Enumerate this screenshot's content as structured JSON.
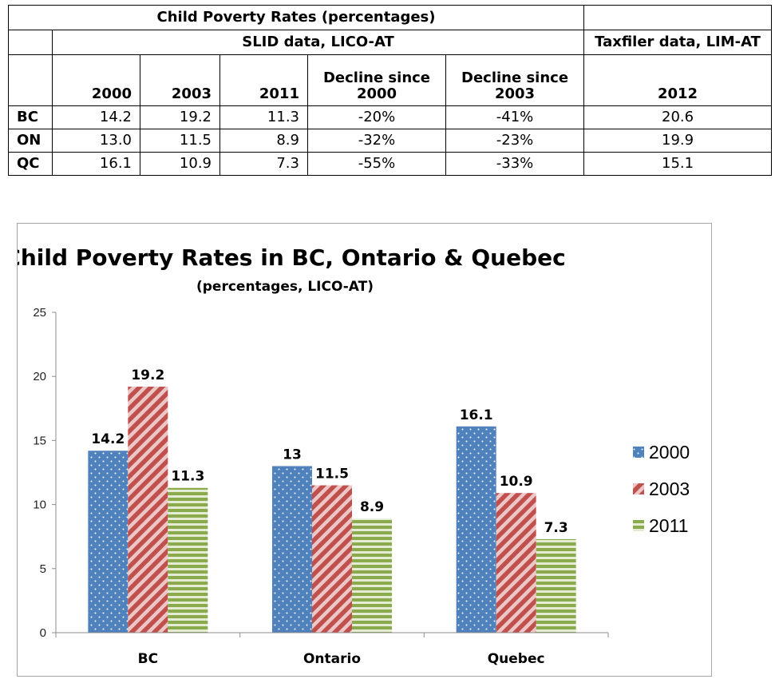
{
  "table": {
    "title": "Child Poverty Rates (percentages)",
    "slid_header": "SLID data, LICO-AT",
    "taxfiler_header": "Taxfiler data, LIM-AT",
    "columns": [
      "2000",
      "2003",
      "2011",
      "Decline since\n2000",
      "Decline since\n2003",
      "2012"
    ],
    "rows": [
      {
        "label": "BC",
        "cells": [
          "14.2",
          "19.2",
          "11.3",
          "-20%",
          "-41%",
          "20.6"
        ]
      },
      {
        "label": "ON",
        "cells": [
          "13.0",
          "11.5",
          "8.9",
          "-32%",
          "-23%",
          "19.9"
        ]
      },
      {
        "label": "QC",
        "cells": [
          "16.1",
          "10.9",
          "7.3",
          "-55%",
          "-33%",
          "15.1"
        ]
      }
    ]
  },
  "chart_data": {
    "type": "bar",
    "title": "Child Poverty Rates in BC, Ontario & Quebec",
    "subtitle": "(percentages, LICO-AT)",
    "categories": [
      "BC",
      "Ontario",
      "Quebec"
    ],
    "series": [
      {
        "name": "2000",
        "values": [
          14.2,
          13,
          16.1
        ],
        "color": "#4f81bd",
        "pattern": "dots"
      },
      {
        "name": "2003",
        "values": [
          19.2,
          11.5,
          10.9
        ],
        "color": "#c0504d",
        "pattern": "diagonal-stripes"
      },
      {
        "name": "2011",
        "values": [
          11.3,
          8.9,
          7.3
        ],
        "color": "#9bbb59",
        "pattern": "horizontal-stripes"
      }
    ],
    "ylim": [
      0,
      25
    ],
    "yticks": [
      0,
      5,
      10,
      15,
      20,
      25
    ],
    "xlabel": "",
    "ylabel": "",
    "grid": false,
    "legend_position": "right"
  }
}
